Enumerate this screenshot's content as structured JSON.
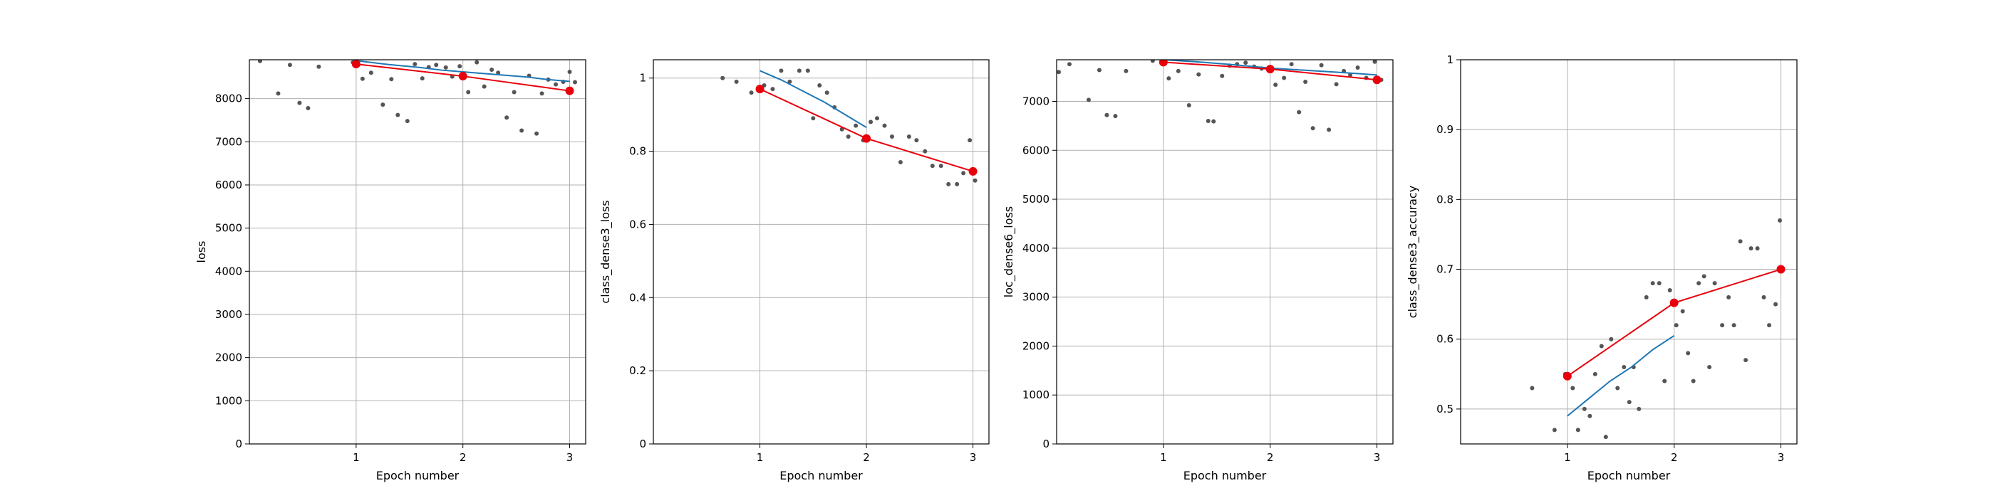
{
  "chart_data": [
    {
      "type": "scatter",
      "xlabel": "Epoch number",
      "ylabel": "loss",
      "xlim": [
        0.0,
        3.15
      ],
      "ylim": [
        0,
        8900
      ],
      "xticks": [
        1,
        2,
        3
      ],
      "yticks": [
        0,
        1000,
        2000,
        3000,
        4000,
        5000,
        6000,
        7000,
        8000
      ],
      "grid": true,
      "series": [
        {
          "kind": "points",
          "color": "#555555",
          "x": [
            0.1,
            0.27,
            0.38,
            0.47,
            0.55,
            0.65,
            0.97,
            1.06,
            1.14,
            1.25,
            1.33,
            1.39,
            1.48,
            1.55,
            1.62,
            1.68,
            1.75,
            1.84,
            1.9,
            1.97,
            2.05,
            2.13,
            2.2,
            2.27,
            2.33,
            2.41,
            2.48,
            2.55,
            2.62,
            2.69,
            2.74,
            2.8,
            2.87,
            2.94,
            3.0,
            3.05
          ],
          "y": [
            8870,
            8120,
            8780,
            7900,
            7780,
            8740,
            8840,
            8460,
            8600,
            7860,
            8450,
            7620,
            7480,
            8800,
            8470,
            8730,
            8780,
            8720,
            8510,
            8750,
            8150,
            8840,
            8280,
            8670,
            8600,
            7560,
            8150,
            7260,
            8530,
            7190,
            8120,
            8440,
            8330,
            8390,
            8620,
            8380
          ]
        },
        {
          "kind": "line",
          "color": "#1f77b4",
          "x": [
            1.0,
            1.3,
            1.6,
            1.8,
            2.0,
            2.3,
            2.6,
            2.8,
            3.0
          ],
          "y": [
            8880,
            8790,
            8720,
            8660,
            8620,
            8560,
            8500,
            8440,
            8400
          ]
        },
        {
          "kind": "line-markers",
          "color": "#e8000b",
          "x": [
            1,
            2,
            3
          ],
          "y": [
            8800,
            8520,
            8180
          ]
        }
      ]
    },
    {
      "type": "scatter",
      "xlabel": "Epoch number",
      "ylabel": "class_dense3_loss",
      "xlim": [
        0.0,
        3.15
      ],
      "ylim": [
        0.0,
        1.05
      ],
      "xticks": [
        1,
        2,
        3
      ],
      "yticks": [
        0.0,
        0.2,
        0.4,
        0.6,
        0.8,
        1.0
      ],
      "grid": true,
      "series": [
        {
          "kind": "points",
          "color": "#555555",
          "x": [
            0.65,
            0.78,
            0.92,
            1.04,
            1.12,
            1.2,
            1.28,
            1.37,
            1.45,
            1.5,
            1.56,
            1.63,
            1.7,
            1.77,
            1.83,
            1.9,
            1.97,
            2.04,
            2.1,
            2.17,
            2.24,
            2.32,
            2.4,
            2.47,
            2.55,
            2.62,
            2.7,
            2.77,
            2.85,
            2.91,
            2.97,
            3.02
          ],
          "y": [
            1.0,
            0.99,
            0.96,
            0.98,
            0.97,
            1.02,
            0.99,
            1.02,
            1.02,
            0.89,
            0.98,
            0.96,
            0.92,
            0.86,
            0.84,
            0.87,
            0.83,
            0.88,
            0.89,
            0.87,
            0.84,
            0.77,
            0.84,
            0.83,
            0.8,
            0.76,
            0.76,
            0.71,
            0.71,
            0.74,
            0.83,
            0.72
          ]
        },
        {
          "kind": "line",
          "color": "#1f77b4",
          "x": [
            1.0,
            1.2,
            1.4,
            1.6,
            1.8,
            2.0
          ],
          "y": [
            1.02,
            0.995,
            0.965,
            0.935,
            0.9,
            0.865
          ]
        },
        {
          "kind": "line-markers",
          "color": "#e8000b",
          "x": [
            1,
            2,
            3
          ],
          "y": [
            0.97,
            0.835,
            0.745
          ]
        }
      ]
    },
    {
      "type": "scatter",
      "xlabel": "Epoch number",
      "ylabel": "loc_dense6_loss",
      "xlim": [
        0.0,
        3.15
      ],
      "ylim": [
        0,
        7850
      ],
      "xticks": [
        1,
        2,
        3
      ],
      "yticks": [
        0,
        1000,
        2000,
        3000,
        4000,
        5000,
        6000,
        7000
      ],
      "grid": true,
      "series": [
        {
          "kind": "points",
          "color": "#555555",
          "x": [
            0.02,
            0.12,
            0.3,
            0.4,
            0.47,
            0.55,
            0.65,
            0.9,
            1.05,
            1.14,
            1.24,
            1.33,
            1.42,
            1.47,
            1.55,
            1.62,
            1.69,
            1.77,
            1.85,
            1.92,
            2.01,
            2.05,
            2.13,
            2.2,
            2.27,
            2.33,
            2.4,
            2.48,
            2.55,
            2.62,
            2.69,
            2.75,
            2.82,
            2.9,
            2.98,
            3.04
          ],
          "y": [
            7600,
            7760,
            7030,
            7640,
            6720,
            6700,
            7620,
            7830,
            7470,
            7620,
            6920,
            7550,
            6600,
            6590,
            7520,
            7730,
            7760,
            7790,
            7710,
            7670,
            7650,
            7340,
            7480,
            7760,
            6780,
            7400,
            6450,
            7740,
            6420,
            7350,
            7620,
            7540,
            7690,
            7480,
            7810,
            7440
          ]
        },
        {
          "kind": "line",
          "color": "#1f77b4",
          "x": [
            1.0,
            1.3,
            1.6,
            1.8,
            2.0,
            2.3,
            2.6,
            2.8,
            3.0
          ],
          "y": [
            7850,
            7810,
            7760,
            7720,
            7680,
            7640,
            7600,
            7570,
            7540
          ]
        },
        {
          "kind": "line-markers",
          "color": "#e8000b",
          "x": [
            1,
            2,
            3
          ],
          "y": [
            7800,
            7660,
            7440
          ]
        }
      ]
    },
    {
      "type": "scatter",
      "xlabel": "Epoch number",
      "ylabel": "class_dense3_accuracy",
      "xlim": [
        0.0,
        3.15
      ],
      "ylim": [
        0.45,
        1.0
      ],
      "xticks": [
        1,
        2,
        3
      ],
      "yticks": [
        0.5,
        0.6,
        0.7,
        0.8,
        0.9,
        1.0
      ],
      "grid": true,
      "series": [
        {
          "kind": "points",
          "color": "#555555",
          "x": [
            0.67,
            0.88,
            0.98,
            1.05,
            1.1,
            1.16,
            1.21,
            1.26,
            1.32,
            1.36,
            1.41,
            1.47,
            1.53,
            1.58,
            1.62,
            1.67,
            1.74,
            1.8,
            1.86,
            1.91,
            1.96,
            2.02,
            2.08,
            2.13,
            2.18,
            2.23,
            2.28,
            2.33,
            2.38,
            2.45,
            2.51,
            2.56,
            2.62,
            2.67,
            2.72,
            2.78,
            2.84,
            2.89,
            2.95,
            2.99
          ],
          "y": [
            0.53,
            0.47,
            0.55,
            0.53,
            0.47,
            0.5,
            0.49,
            0.55,
            0.59,
            0.46,
            0.6,
            0.53,
            0.56,
            0.51,
            0.56,
            0.5,
            0.66,
            0.68,
            0.68,
            0.54,
            0.67,
            0.62,
            0.64,
            0.58,
            0.54,
            0.68,
            0.69,
            0.56,
            0.68,
            0.62,
            0.66,
            0.62,
            0.74,
            0.57,
            0.73,
            0.73,
            0.66,
            0.62,
            0.65,
            0.77
          ]
        },
        {
          "kind": "line",
          "color": "#1f77b4",
          "x": [
            1.0,
            1.2,
            1.4,
            1.6,
            1.8,
            2.0
          ],
          "y": [
            0.49,
            0.515,
            0.54,
            0.56,
            0.585,
            0.605
          ]
        },
        {
          "kind": "line-markers",
          "color": "#e8000b",
          "x": [
            1,
            2,
            3
          ],
          "y": [
            0.547,
            0.652,
            0.7
          ]
        }
      ]
    }
  ]
}
